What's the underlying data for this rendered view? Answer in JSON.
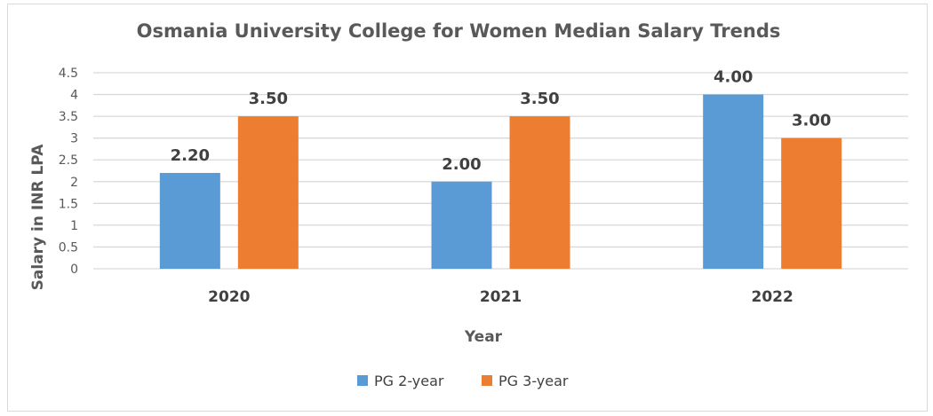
{
  "chart_data": {
    "type": "bar",
    "title": "Osmania University College for Women Median Salary Trends",
    "xlabel": "Year",
    "ylabel": "Salary in INR LPA",
    "categories": [
      "2020",
      "2021",
      "2022"
    ],
    "series": [
      {
        "name": "PG 2-year",
        "values": [
          2.2,
          2.0,
          4.0
        ],
        "labels": [
          "2.20",
          "2.00",
          "4.00"
        ],
        "color": "#5b9bd5"
      },
      {
        "name": "PG 3-year",
        "values": [
          3.5,
          3.5,
          3.0
        ],
        "labels": [
          "3.50",
          "3.50",
          "3.00"
        ],
        "color": "#ed7d31"
      }
    ],
    "ylim": [
      0,
      4.5
    ],
    "yticks": [
      "0",
      "0.5",
      "1",
      "1.5",
      "2",
      "2.5",
      "3",
      "3.5",
      "4",
      "4.5"
    ],
    "grid": true,
    "legend": "bottom"
  }
}
